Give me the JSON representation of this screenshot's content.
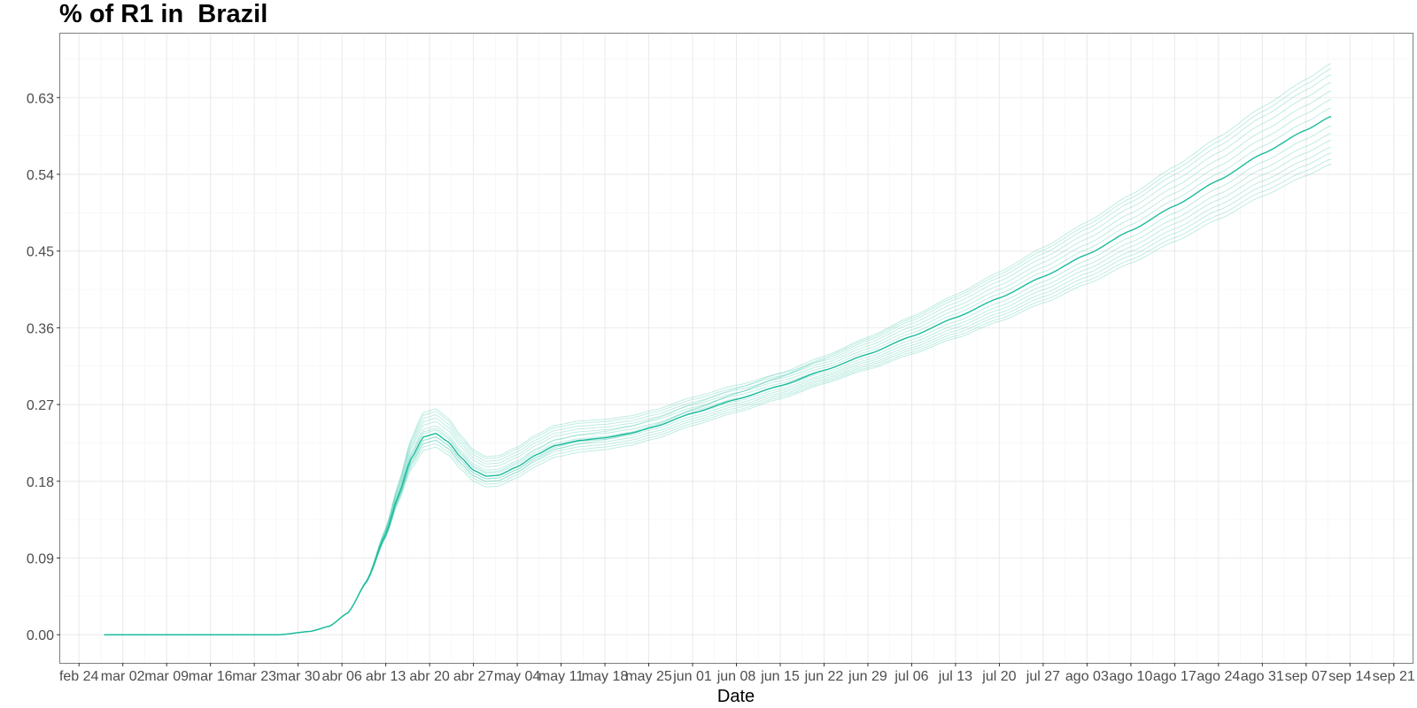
{
  "chart_data": {
    "type": "line",
    "title": "% of R1 in  Brazil",
    "xlabel": "Date",
    "ylabel": "",
    "x_start": "2020-02-28",
    "x_end": "2020-09-11",
    "xlim": [
      "2020-02-21",
      "2020-09-24"
    ],
    "ylim": [
      -0.033,
      0.705
    ],
    "y_ticks": [
      0.0,
      0.09,
      0.18,
      0.27,
      0.36,
      0.45,
      0.54,
      0.63
    ],
    "y_tick_labels": [
      "0.00",
      "0.09",
      "0.18",
      "0.27",
      "0.36",
      "0.45",
      "0.54",
      "0.63"
    ],
    "x_ticks": [
      "2020-02-24",
      "2020-03-02",
      "2020-03-09",
      "2020-03-16",
      "2020-03-23",
      "2020-03-30",
      "2020-04-06",
      "2020-04-13",
      "2020-04-20",
      "2020-04-27",
      "2020-05-04",
      "2020-05-11",
      "2020-05-18",
      "2020-05-25",
      "2020-06-01",
      "2020-06-08",
      "2020-06-15",
      "2020-06-22",
      "2020-06-29",
      "2020-07-06",
      "2020-07-13",
      "2020-07-20",
      "2020-07-27",
      "2020-08-03",
      "2020-08-10",
      "2020-08-17",
      "2020-08-24",
      "2020-08-31",
      "2020-09-07",
      "2020-09-14",
      "2020-09-21"
    ],
    "x_tick_labels": [
      "feb 24",
      "mar 02",
      "mar 09",
      "mar 16",
      "mar 23",
      "mar 30",
      "abr 06",
      "abr 13",
      "abr 20",
      "abr 27",
      "may 04",
      "may 11",
      "may 18",
      "may 25",
      "jun 01",
      "jun 08",
      "jun 15",
      "jun 22",
      "jun 29",
      "jul 06",
      "jul 13",
      "jul 20",
      "jul 27",
      "ago 03",
      "ago 10",
      "ago 17",
      "ago 24",
      "ago 31",
      "sep 07",
      "sep 14",
      "sep 21"
    ],
    "grid": true,
    "series_color": "#1abc9c",
    "main_series": {
      "x": [
        "2020-02-28",
        "2020-03-27",
        "2020-04-01",
        "2020-04-04",
        "2020-04-07",
        "2020-04-10",
        "2020-04-13",
        "2020-04-15",
        "2020-04-17",
        "2020-04-19",
        "2020-04-21",
        "2020-04-23",
        "2020-04-25",
        "2020-04-27",
        "2020-04-29",
        "2020-05-01",
        "2020-05-04",
        "2020-05-07",
        "2020-05-10",
        "2020-05-14",
        "2020-05-18",
        "2020-05-22",
        "2020-05-26",
        "2020-06-01",
        "2020-06-08",
        "2020-06-15",
        "2020-06-22",
        "2020-06-29",
        "2020-07-06",
        "2020-07-13",
        "2020-07-20",
        "2020-07-27",
        "2020-08-03",
        "2020-08-10",
        "2020-08-17",
        "2020-08-24",
        "2020-08-31",
        "2020-09-07",
        "2020-09-11"
      ],
      "y": [
        0.0,
        0.0,
        0.004,
        0.01,
        0.026,
        0.063,
        0.118,
        0.163,
        0.206,
        0.232,
        0.236,
        0.226,
        0.208,
        0.193,
        0.186,
        0.187,
        0.197,
        0.211,
        0.222,
        0.228,
        0.231,
        0.236,
        0.244,
        0.26,
        0.276,
        0.292,
        0.31,
        0.329,
        0.35,
        0.372,
        0.395,
        0.42,
        0.446,
        0.474,
        0.503,
        0.533,
        0.564,
        0.592,
        0.608
      ]
    },
    "ensemble": {
      "x_end": "2020-09-11",
      "end_values": [
        0.552,
        0.558,
        0.565,
        0.572,
        0.58,
        0.588,
        0.597,
        0.608,
        0.618,
        0.628,
        0.638,
        0.648,
        0.657,
        0.664,
        0.67
      ],
      "peak_values": [
        0.22,
        0.224,
        0.228,
        0.232,
        0.236,
        0.24,
        0.245,
        0.25,
        0.254,
        0.258,
        0.262,
        0.265,
        0.232,
        0.228,
        0.242
      ]
    }
  }
}
